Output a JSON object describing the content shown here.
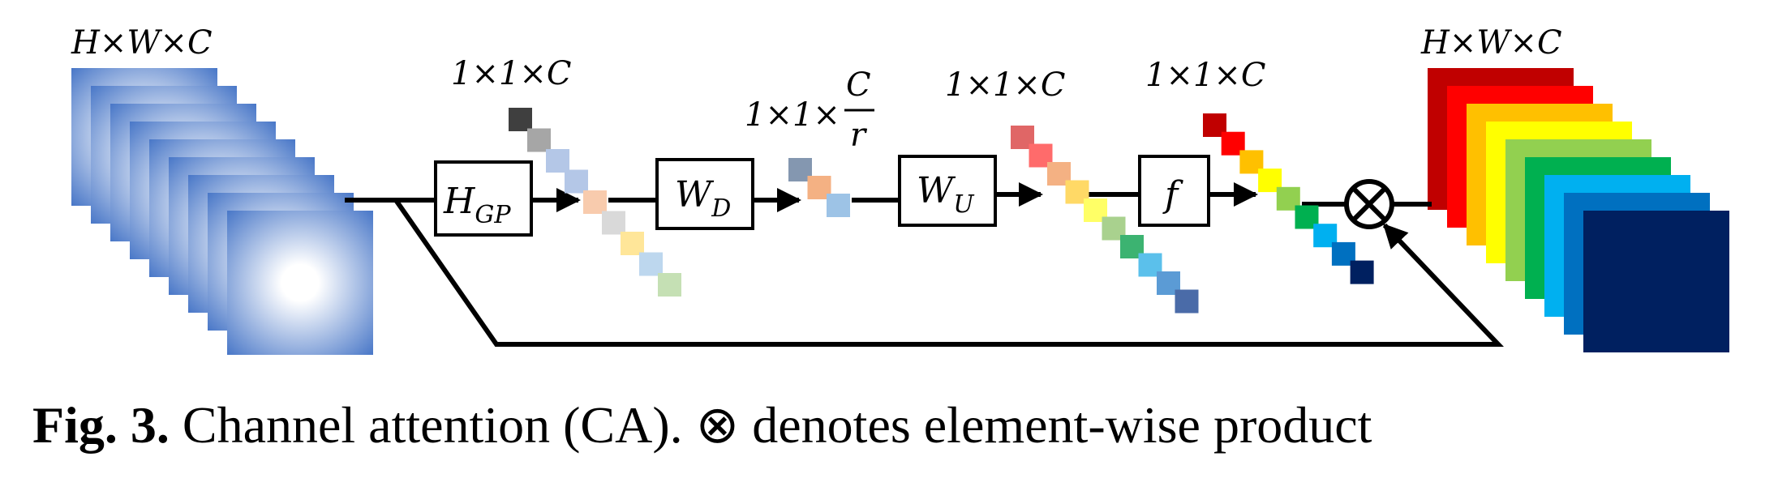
{
  "input_dim": "H×W×C",
  "output_dim": "H×W×C",
  "dim_after_gp": "1×1×C",
  "dim_reduced_prefix": "1×1×",
  "dim_reduced_num": "C",
  "dim_reduced_den": "r",
  "dim_after_up": "1×1×C",
  "dim_after_f": "1×1×C",
  "blocks": {
    "gp": {
      "main": "H",
      "sub": "GP"
    },
    "down": {
      "main": "W",
      "sub": "D"
    },
    "up": {
      "main": "W",
      "sub": "U"
    },
    "act": {
      "main": "f"
    }
  },
  "product_symbol": "⊗",
  "caption": {
    "label": "Fig. 3.",
    "text": " Channel attention (CA). ⊗ denotes element-wise product"
  },
  "colors": {
    "input_edge": "#4a78c8",
    "input_center": "#ffffff",
    "gp_squares": [
      "#3f3f3f",
      "#a6a6a6",
      "#b4c7e7",
      "#b4c7e7",
      "#f8cbad",
      "#d9d9d9",
      "#ffe699",
      "#bdd7ee",
      "#c5e0b4"
    ],
    "down_squares": [
      "#8497b0",
      "#f4b183",
      "#9dc3e6"
    ],
    "up_squares": [
      "#e06666",
      "#ff6b6b",
      "#f4b183",
      "#ffd966",
      "#ffff66",
      "#a9d18e",
      "#3cb371",
      "#5bc0eb",
      "#5b9bd5",
      "#4a6ba8"
    ],
    "f_squares": [
      "#c00000",
      "#ff0000",
      "#ffc000",
      "#ffff00",
      "#92d050",
      "#00b050",
      "#00b0f0",
      "#0070c0",
      "#002060"
    ],
    "output_stack": [
      "#c00000",
      "#ff0000",
      "#ffc000",
      "#ffff00",
      "#92d050",
      "#00b050",
      "#00b0f0",
      "#0070c0",
      "#002060"
    ]
  }
}
